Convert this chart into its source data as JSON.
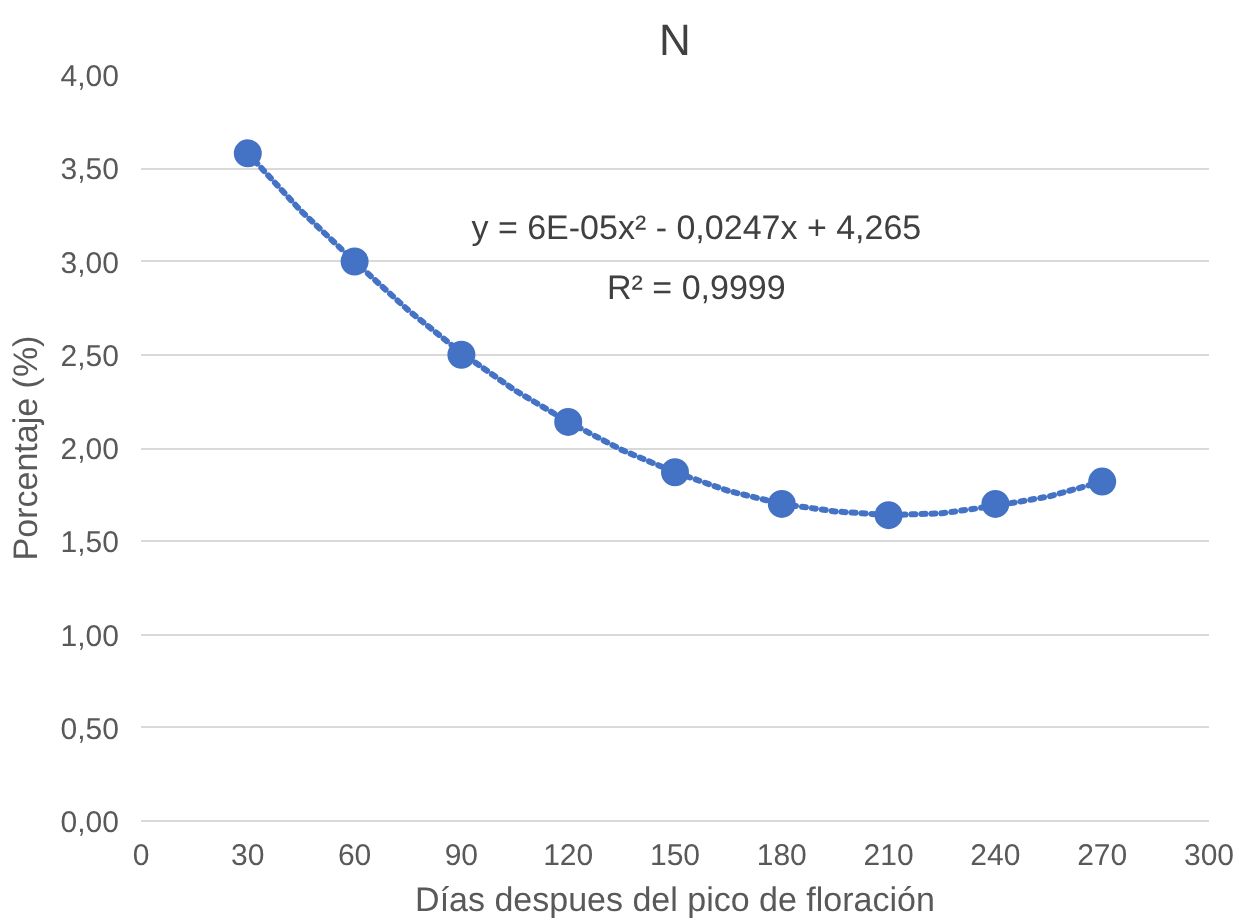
{
  "chart_data": {
    "type": "scatter",
    "title": "N",
    "xlabel": "Días despues del pico de floración",
    "ylabel": "Porcentaje (%)",
    "xlim": [
      0,
      300
    ],
    "xticks": [
      0,
      30,
      60,
      90,
      120,
      150,
      180,
      210,
      240,
      270,
      300
    ],
    "ylim": [
      0,
      4
    ],
    "yticks": [
      {
        "value": 0,
        "label": "0,00"
      },
      {
        "value": 0.5,
        "label": "0,50"
      },
      {
        "value": 1,
        "label": "1,00"
      },
      {
        "value": 1.5,
        "label": "1,50"
      },
      {
        "value": 2,
        "label": "2,00"
      },
      {
        "value": 2.5,
        "label": "2,50"
      },
      {
        "value": 3,
        "label": "3,00"
      },
      {
        "value": 3.5,
        "label": "3,50"
      },
      {
        "value": 4,
        "label": "4,00"
      }
    ],
    "grid": "y",
    "series": [
      {
        "marker": "circle",
        "color": "#4472c4",
        "x": [
          30,
          60,
          90,
          120,
          150,
          180,
          210,
          240,
          270
        ],
        "values": [
          3.58,
          3.0,
          2.5,
          2.14,
          1.87,
          1.7,
          1.64,
          1.7,
          1.82
        ]
      },
      {
        "type": "line",
        "marker": "none",
        "line_style": "dotted",
        "color": "#4472c4",
        "x": [
          30,
          45,
          60,
          75,
          90,
          105,
          120,
          135,
          150,
          165,
          180,
          195,
          210,
          225,
          240,
          255,
          270
        ],
        "values": [
          3.58,
          3.27,
          3.0,
          2.74,
          2.51,
          2.31,
          2.14,
          1.99,
          1.87,
          1.77,
          1.7,
          1.66,
          1.64,
          1.65,
          1.69,
          1.74,
          1.82
        ]
      }
    ],
    "annotations": [
      "y = 6E-05x² - 0,0247x + 4,265",
      "R² = 0,9999"
    ]
  }
}
